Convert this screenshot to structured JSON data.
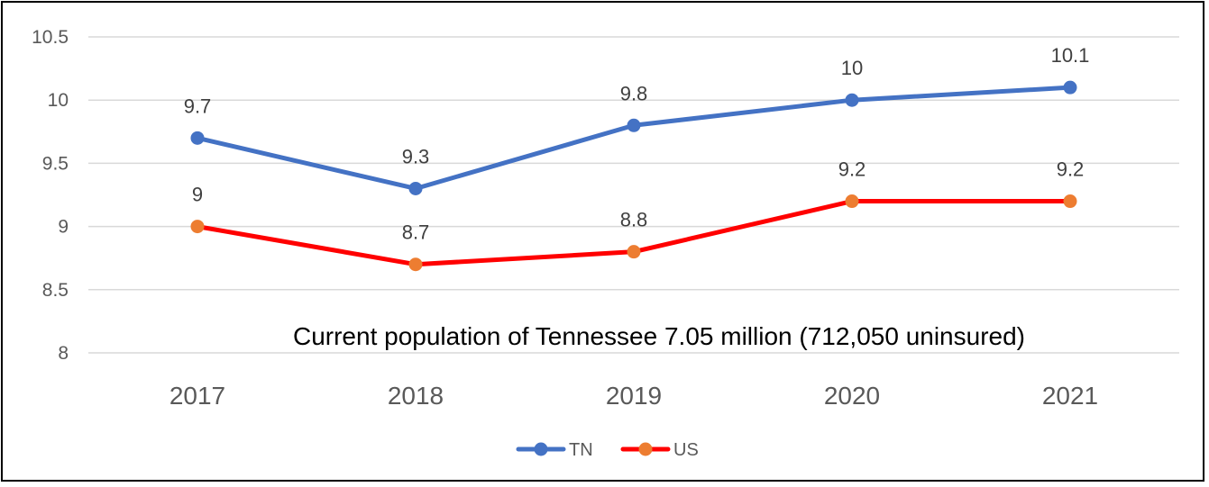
{
  "chart_data": {
    "type": "line",
    "title": "",
    "xlabel": "",
    "ylabel": "",
    "categories": [
      "2017",
      "2018",
      "2019",
      "2020",
      "2021"
    ],
    "ylim": [
      8,
      10.5
    ],
    "yticks": [
      "8",
      "8.5",
      "9",
      "9.5",
      "10",
      "10.5"
    ],
    "grid": true,
    "legend_position": "bottom-center",
    "series": [
      {
        "name": "TN",
        "values": [
          9.7,
          9.3,
          9.8,
          10,
          10.1
        ],
        "labels": [
          "9.7",
          "9.3",
          "9.8",
          "10",
          "10.1"
        ],
        "line_color": "#4472C4",
        "marker_color": "#4472C4"
      },
      {
        "name": "US",
        "values": [
          9,
          8.7,
          8.8,
          9.2,
          9.2
        ],
        "labels": [
          "9",
          "8.7",
          "8.8",
          "9.2",
          "9.2"
        ],
        "line_color": "#FF0000",
        "marker_color": "#ED7D31"
      }
    ],
    "annotation": "Current population of Tennessee 7.05 million (712,050 uninsured)"
  }
}
